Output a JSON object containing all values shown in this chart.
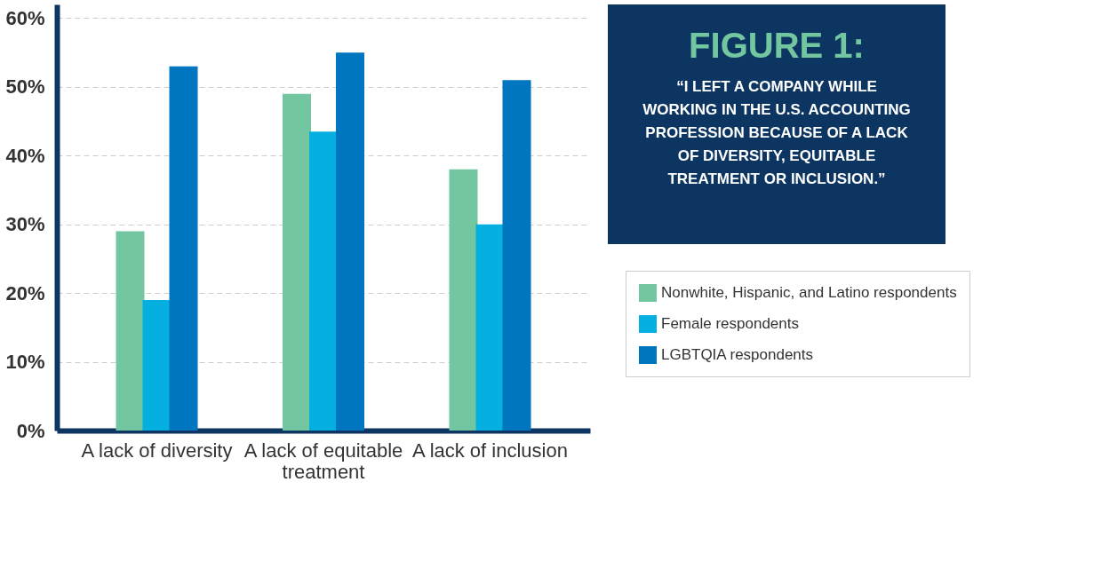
{
  "chart_data": {
    "type": "bar",
    "title": "FIGURE 1:",
    "subtitle": "“I LEFT A COMPANY WHILE WORKING IN THE U.S. ACCOUNTING PROFESSION BECAUSE OF A LACK OF DIVERSITY, EQUITABLE TREATMENT OR INCLUSION.”",
    "categories": [
      "A lack of diversity",
      "A lack of equitable treatment",
      "A lack of inclusion"
    ],
    "series": [
      {
        "name": "Nonwhite, Hispanic, and Latino respondents",
        "color": "#72c6a0",
        "values": [
          29,
          49,
          38
        ]
      },
      {
        "name": "Female respondents",
        "color": "#05b0e0",
        "values": [
          19,
          43.5,
          30
        ]
      },
      {
        "name": "LGBTQIA respondents",
        "color": "#0075c0",
        "values": [
          53,
          55,
          51
        ]
      }
    ],
    "ylim": [
      0,
      62
    ],
    "yticks": [
      {
        "value": 0,
        "label": "0%"
      },
      {
        "value": 10,
        "label": "10%"
      },
      {
        "value": 20,
        "label": "20%"
      },
      {
        "value": 30,
        "label": "30%"
      },
      {
        "value": 40,
        "label": "40%"
      },
      {
        "value": 50,
        "label": "50%"
      },
      {
        "value": 60,
        "label": "60%"
      }
    ],
    "grid": "y",
    "legend": "right"
  }
}
